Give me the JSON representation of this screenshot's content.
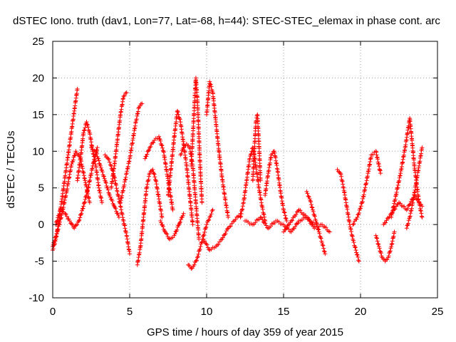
{
  "chart_data": {
    "type": "scatter",
    "title": "dSTEC Iono. truth (dav1, Lon=77, Lat=-68, h=44): STEC-STEC_elemax in phase cont. arc",
    "xlabel": "GPS time / hours of day 359 of year 2015",
    "ylabel": "dSTEC  / TECUs",
    "xlim": [
      0,
      25
    ],
    "ylim": [
      -10,
      25
    ],
    "xticks": [
      0,
      5,
      10,
      15,
      20,
      25
    ],
    "yticks": [
      -10,
      -5,
      0,
      5,
      10,
      15,
      20,
      25
    ],
    "grid": true,
    "legend": "none",
    "marker": "+",
    "color": "#ff0000",
    "arcs": [
      {
        "x": [
          0.0,
          0.2,
          0.4,
          0.6,
          0.8,
          1.0,
          1.2,
          1.4,
          1.6
        ],
        "y": [
          -3.5,
          -2.0,
          0.5,
          3.5,
          6.5,
          9.5,
          12.5,
          15.5,
          18.5
        ]
      },
      {
        "x": [
          0.0,
          0.3,
          0.6,
          0.9,
          1.2,
          1.5,
          1.8,
          2.1,
          2.4
        ],
        "y": [
          -3.0,
          -1.0,
          1.5,
          4.5,
          8.0,
          10.0,
          9.0,
          6.0,
          3.0
        ]
      },
      {
        "x": [
          0.2,
          0.5,
          0.8,
          1.1,
          1.4,
          1.7,
          2.0,
          2.3,
          2.6,
          2.9
        ],
        "y": [
          0.0,
          2.0,
          1.5,
          0.5,
          -0.5,
          0.5,
          2.5,
          5.0,
          8.0,
          10.5
        ]
      },
      {
        "x": [
          1.6,
          1.8,
          2.0,
          2.2,
          2.4,
          2.6,
          2.8,
          3.0,
          3.2
        ],
        "y": [
          6.0,
          9.0,
          12.5,
          14.0,
          12.5,
          10.0,
          8.0,
          5.0,
          3.0
        ]
      },
      {
        "x": [
          2.5,
          2.8,
          3.1,
          3.4,
          3.7,
          4.0,
          4.3
        ],
        "y": [
          10.5,
          10.0,
          8.0,
          6.0,
          4.0,
          2.5,
          1.0
        ]
      },
      {
        "x": [
          3.4,
          3.6,
          3.8,
          4.0,
          4.2,
          4.4,
          4.6,
          4.8,
          5.0
        ],
        "y": [
          9.5,
          9.0,
          8.0,
          6.5,
          4.5,
          2.5,
          0.5,
          -1.5,
          -4.0
        ]
      },
      {
        "x": [
          3.8,
          4.0,
          4.2,
          4.4,
          4.6,
          4.8
        ],
        "y": [
          5.0,
          8.0,
          11.5,
          15.0,
          17.5,
          18.0
        ]
      },
      {
        "x": [
          4.4,
          4.6,
          4.8,
          5.0,
          5.2,
          5.4,
          5.6,
          5.8
        ],
        "y": [
          3.0,
          5.0,
          7.0,
          9.0,
          11.5,
          14.0,
          16.0,
          16.5
        ]
      },
      {
        "x": [
          5.5,
          5.7,
          5.9,
          6.1,
          6.3,
          6.5,
          6.7,
          6.9,
          7.1
        ],
        "y": [
          -5.5,
          -3.0,
          1.0,
          5.0,
          7.0,
          7.5,
          6.0,
          3.5,
          1.0
        ]
      },
      {
        "x": [
          6.0,
          6.3,
          6.6,
          6.9,
          7.2,
          7.5,
          7.8
        ],
        "y": [
          9.0,
          10.5,
          11.5,
          12.0,
          10.0,
          6.0,
          2.0
        ]
      },
      {
        "x": [
          7.0,
          7.3,
          7.6,
          7.9,
          8.2,
          8.5
        ],
        "y": [
          0.5,
          -1.0,
          -2.0,
          -1.5,
          0.0,
          1.5
        ]
      },
      {
        "x": [
          7.5,
          7.7,
          7.9,
          8.1,
          8.3,
          8.5,
          8.7,
          8.9,
          9.1
        ],
        "y": [
          4.0,
          8.0,
          12.0,
          15.5,
          14.0,
          11.0,
          8.0,
          4.0,
          0.0
        ]
      },
      {
        "x": [
          8.3,
          8.5,
          8.7,
          8.9,
          9.1,
          9.3,
          9.5
        ],
        "y": [
          9.5,
          10.5,
          11.0,
          10.5,
          8.0,
          3.0,
          -2.0
        ]
      },
      {
        "x": [
          9.0,
          9.1,
          9.2,
          9.3,
          9.4,
          9.5,
          9.6,
          9.7
        ],
        "y": [
          8.0,
          12.0,
          16.0,
          20.0,
          17.0,
          12.0,
          7.0,
          3.0
        ]
      },
      {
        "x": [
          8.8,
          9.0,
          9.2,
          9.4,
          9.6,
          9.8,
          10.0,
          10.2,
          10.4
        ],
        "y": [
          -5.5,
          -6.0,
          -5.5,
          -4.5,
          -3.0,
          -1.5,
          0.0,
          1.0,
          2.0
        ]
      },
      {
        "x": [
          10.0,
          10.2,
          10.4,
          10.6,
          10.8,
          11.0,
          11.2,
          11.4
        ],
        "y": [
          15.0,
          19.5,
          18.0,
          14.0,
          10.0,
          6.5,
          3.5,
          1.0
        ]
      },
      {
        "x": [
          9.8,
          10.2,
          10.6,
          11.0,
          11.4,
          11.8,
          12.2
        ],
        "y": [
          -2.0,
          -3.5,
          -3.0,
          -2.0,
          -0.5,
          0.5,
          1.5
        ]
      },
      {
        "x": [
          12.2,
          12.4,
          12.6,
          12.8,
          13.0,
          13.2,
          13.4,
          13.6,
          13.8
        ],
        "y": [
          1.0,
          3.0,
          6.0,
          9.0,
          10.5,
          8.0,
          5.0,
          2.5,
          0.5
        ]
      },
      {
        "x": [
          13.0,
          13.1,
          13.2,
          13.3,
          13.4,
          13.5
        ],
        "y": [
          6.0,
          10.0,
          14.0,
          15.0,
          11.0,
          6.0
        ]
      },
      {
        "x": [
          13.8,
          14.0,
          14.2,
          14.4,
          14.6,
          14.8,
          15.0,
          15.2
        ],
        "y": [
          4.0,
          7.0,
          9.5,
          10.0,
          7.5,
          4.5,
          2.0,
          0.5
        ]
      },
      {
        "x": [
          12.5,
          13.0,
          13.5,
          14.0,
          14.5,
          15.0,
          15.5,
          16.0,
          16.5,
          17.0
        ],
        "y": [
          0.5,
          0.0,
          1.0,
          -0.5,
          0.5,
          0.0,
          -1.0,
          0.5,
          1.0,
          0.0
        ]
      },
      {
        "x": [
          15.0,
          15.5,
          16.0,
          16.5,
          17.0,
          17.5,
          18.0
        ],
        "y": [
          -1.0,
          0.5,
          2.0,
          1.0,
          -0.5,
          0.0,
          -1.0
        ]
      },
      {
        "x": [
          16.5,
          16.7,
          16.9,
          17.1,
          17.3,
          17.5,
          17.7
        ],
        "y": [
          4.5,
          3.5,
          2.0,
          0.5,
          -1.0,
          -2.5,
          -4.0
        ]
      },
      {
        "x": [
          18.5,
          18.7,
          18.9,
          19.1,
          19.3,
          19.5,
          19.7,
          19.9
        ],
        "y": [
          7.5,
          7.0,
          5.0,
          2.5,
          0.0,
          -2.0,
          -3.5,
          -5.0
        ]
      },
      {
        "x": [
          19.5,
          19.8,
          20.1,
          20.4,
          20.7,
          21.0,
          21.3
        ],
        "y": [
          0.0,
          1.0,
          3.0,
          6.0,
          9.5,
          10.0,
          7.0
        ]
      },
      {
        "x": [
          21.0,
          21.2,
          21.4,
          21.6,
          21.8,
          22.0,
          22.2
        ],
        "y": [
          -1.5,
          -3.0,
          -4.5,
          -5.0,
          -4.5,
          -3.0,
          -1.0
        ]
      },
      {
        "x": [
          22.0,
          22.3,
          22.6,
          22.9,
          23.2,
          23.5,
          23.8,
          24.0
        ],
        "y": [
          1.0,
          4.0,
          7.0,
          10.5,
          14.5,
          8.0,
          3.0,
          1.0
        ]
      },
      {
        "x": [
          23.0,
          23.2,
          23.4,
          23.6,
          23.8,
          24.0
        ],
        "y": [
          -0.5,
          1.0,
          3.0,
          5.5,
          8.0,
          10.5
        ]
      },
      {
        "x": [
          21.5,
          22.0,
          22.5,
          23.0,
          23.5,
          24.0
        ],
        "y": [
          0.0,
          1.5,
          3.0,
          2.0,
          4.0,
          2.5
        ]
      }
    ]
  }
}
